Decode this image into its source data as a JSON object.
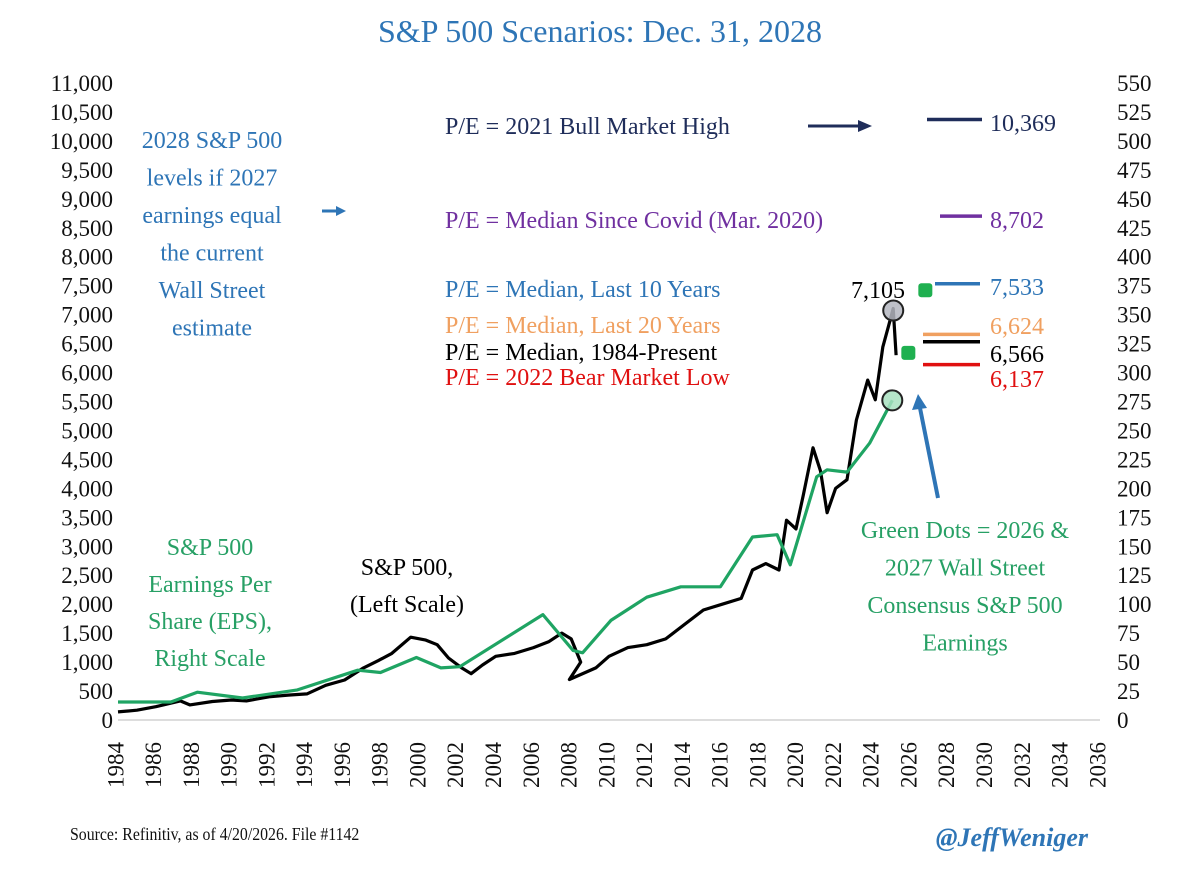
{
  "chart_data": {
    "type": "line",
    "title": "S&P 500 Scenarios: Dec. 31, 2028",
    "x_ticks": [
      "1984",
      "1986",
      "1988",
      "1990",
      "1992",
      "1994",
      "1996",
      "1998",
      "2000",
      "2002",
      "2004",
      "2006",
      "2008",
      "2010",
      "2012",
      "2014",
      "2016",
      "2018",
      "2020",
      "2022",
      "2024",
      "2026",
      "2028",
      "2030",
      "2032",
      "2034",
      "2036"
    ],
    "xlim": [
      1984,
      2036
    ],
    "y_left_ticks": [
      "11,000",
      "10,500",
      "10,000",
      "9,500",
      "9,000",
      "8,500",
      "8,000",
      "7,500",
      "7,000",
      "6,500",
      "6,000",
      "5,500",
      "5,000",
      "4,500",
      "4,000",
      "3,500",
      "3,000",
      "2,500",
      "2,000",
      "1,500",
      "1,000",
      "500",
      "0"
    ],
    "y_left_lim": [
      0,
      11000
    ],
    "y_right_ticks": [
      "550",
      "525",
      "500",
      "475",
      "450",
      "425",
      "400",
      "375",
      "350",
      "325",
      "300",
      "275",
      "250",
      "225",
      "200",
      "175",
      "150",
      "125",
      "100",
      "75",
      "50",
      "25",
      "0"
    ],
    "y_right_lim": [
      0,
      550
    ],
    "grid": false,
    "series": [
      {
        "name": "S&P 500",
        "axis": "left",
        "color": "#000000",
        "x": [
          1984,
          1985,
          1986,
          1987.3,
          1987.8,
          1989,
          1990,
          1990.8,
          1992,
          1993,
          1994,
          1995,
          1996,
          1997,
          1997.8,
          1998.5,
          1999.5,
          2000.3,
          2000.9,
          2001.5,
          2002.2,
          2002.7,
          2003.3,
          2004,
          2005,
          2006,
          2006.8,
          2007.5,
          2008,
          2008.5,
          2007.9,
          2009.3,
          2010,
          2011,
          2012,
          2013,
          2014,
          2015,
          2016,
          2017,
          2017.6,
          2018.3,
          2019.0,
          2019.4,
          2019.9,
          2020.3,
          2020.8,
          2021.2,
          2021.55,
          2022,
          2022.6,
          2023.1,
          2023.7,
          2024.1,
          2024.5,
          2024.8,
          2025.05,
          2025.2
        ],
        "y": [
          140,
          170,
          230,
          330,
          260,
          320,
          345,
          330,
          400,
          430,
          450,
          600,
          690,
          900,
          1030,
          1150,
          1430,
          1380,
          1300,
          1070,
          900,
          800,
          950,
          1100,
          1150,
          1250,
          1350,
          1500,
          1400,
          1000,
          700,
          900,
          1100,
          1250,
          1300,
          1400,
          1650,
          1900,
          2000,
          2100,
          2590,
          2700,
          2590,
          3450,
          3300,
          3900,
          4700,
          4300,
          3580,
          4000,
          4150,
          5180,
          5870,
          5530,
          6440,
          6800,
          7105,
          6300
        ]
      },
      {
        "name": "S&P 500 Earnings Per Share (EPS)",
        "axis": "right",
        "color": "#1fa463",
        "x": [
          1984,
          1986.8,
          1988.2,
          1990.6,
          1993.5,
          1996.7,
          1997.9,
          1999.8,
          2001.1,
          2002.1,
          2006.5,
          2008.1,
          2008.6,
          2010.1,
          2012,
          2013.8,
          2015.9,
          2017.6,
          2018.9,
          2019.6,
          2021.0,
          2021.55,
          2022.6,
          2023.8,
          2025.0
        ],
        "y": [
          15.5,
          15.5,
          24,
          19,
          26,
          43,
          41,
          54,
          45,
          46,
          91,
          60,
          58,
          86,
          106,
          115,
          115,
          158,
          160,
          134,
          210,
          216,
          214,
          239,
          276
        ]
      }
    ],
    "highlights": {
      "sp500_peak": {
        "label": "7,105",
        "value": 7105
      },
      "eps_last": {
        "value": 276
      }
    },
    "green_dots": [
      {
        "label": "2026",
        "value": 317
      },
      {
        "label": "2027",
        "value": 371
      }
    ],
    "scenarios": [
      {
        "label": "P/E = 2021 Bull Market High",
        "value": 10369,
        "value_label": "10,369",
        "color": "#1f2d5a"
      },
      {
        "label": "P/E = Median Since Covid (Mar. 2020)",
        "value": 8702,
        "value_label": "8,702",
        "color": "#7030a0"
      },
      {
        "label": "P/E = Median, Last 10 Years",
        "value": 7533,
        "value_label": "7,533",
        "color": "#2e75b6"
      },
      {
        "label": "P/E = Median, Last 20 Years",
        "value": 6624,
        "value_label": "6,624",
        "color": "#f0a060"
      },
      {
        "label": "P/E = Median, 1984-Present",
        "value": 6566,
        "value_label": "6,566",
        "color": "#000000"
      },
      {
        "label": "P/E = 2022 Bear Market Low",
        "value": 6137,
        "value_label": "6,137",
        "color": "#e01010"
      }
    ],
    "annotations": {
      "left_note": [
        "2028 S&P 500",
        "levels if 2027",
        "earnings equal",
        "the current",
        "Wall Street",
        "estimate"
      ],
      "eps_note": [
        "S&P 500",
        "Earnings Per",
        "Share (EPS),",
        "Right Scale"
      ],
      "sp_note": [
        "S&P 500,",
        "(Left Scale)"
      ],
      "dots_note": [
        "Green Dots = 2026 &",
        "2027 Wall Street",
        "Consensus S&P 500",
        "Earnings"
      ]
    },
    "colors": {
      "title": "#2e75b6",
      "note_blue": "#2e75b6",
      "note_green": "#27a065",
      "handle": "#2e75b6"
    }
  },
  "footer": {
    "source": "Source: Refinitiv, as of 4/20/2026. File #1142",
    "handle": "@JeffWeniger"
  }
}
